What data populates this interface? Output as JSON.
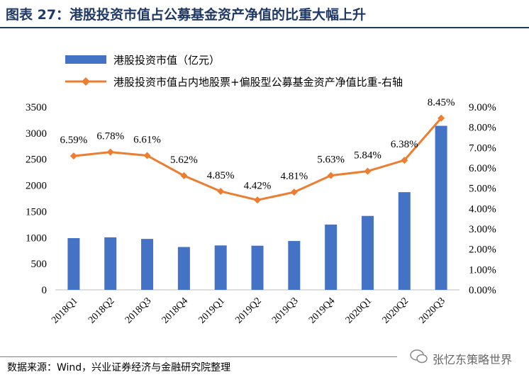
{
  "header": {
    "figure_title": "图表 27：港股投资市值占公募基金资产净值的比重大幅上升"
  },
  "footer": {
    "source": "数据来源：Wind，兴业证券经济与金融研究院整理",
    "watermark": "张忆东策略世界"
  },
  "colors": {
    "bar": "#4472c4",
    "line": "#ed7d31",
    "title": "#1f3864"
  },
  "chart_data": {
    "type": "bar",
    "categories": [
      "2018Q1",
      "2018Q2",
      "2018Q3",
      "2018Q4",
      "2019Q1",
      "2019Q2",
      "2019Q3",
      "2019Q4",
      "2020Q1",
      "2020Q2",
      "2020Q3"
    ],
    "series": [
      {
        "name": "港股投资市值（亿元）",
        "type": "bar",
        "axis": "left",
        "values": [
          990,
          1005,
          975,
          820,
          850,
          845,
          935,
          1250,
          1415,
          1870,
          3140
        ]
      },
      {
        "name": "港股投资市值占内地股票+偏股型公募基金资产净值比重-右轴",
        "type": "line",
        "axis": "right",
        "values": [
          6.59,
          6.78,
          6.61,
          5.62,
          4.85,
          4.42,
          4.81,
          5.63,
          5.84,
          6.38,
          8.45
        ],
        "labels": [
          "6.59%",
          "6.78%",
          "6.61%",
          "5.62%",
          "4.85%",
          "4.42%",
          "4.81%",
          "5.63%",
          "5.84%",
          "6.38%",
          "8.45%"
        ]
      }
    ],
    "left_axis": {
      "ylim": [
        0,
        3500
      ],
      "ticks": [
        "0",
        "500",
        "1000",
        "1500",
        "2000",
        "2500",
        "3000",
        "3500"
      ]
    },
    "right_axis": {
      "ylim": [
        0,
        9
      ],
      "ticks": [
        "0.00%",
        "1.00%",
        "2.00%",
        "3.00%",
        "4.00%",
        "5.00%",
        "6.00%",
        "7.00%",
        "8.00%",
        "9.00%"
      ]
    },
    "legend_position": "top-left"
  }
}
